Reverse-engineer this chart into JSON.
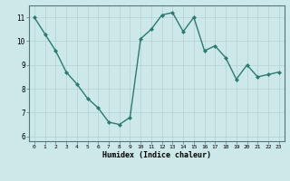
{
  "x": [
    0,
    1,
    2,
    3,
    4,
    5,
    6,
    7,
    8,
    9,
    10,
    11,
    12,
    13,
    14,
    15,
    16,
    17,
    18,
    19,
    20,
    21,
    22,
    23
  ],
  "y": [
    11.0,
    10.3,
    9.6,
    8.7,
    8.2,
    7.6,
    7.2,
    6.6,
    6.5,
    6.8,
    10.1,
    10.5,
    11.1,
    11.2,
    10.4,
    11.0,
    9.6,
    9.8,
    9.3,
    8.4,
    9.0,
    8.5,
    8.6,
    8.7
  ],
  "xlabel": "Humidex (Indice chaleur)",
  "xlim": [
    -0.5,
    23.5
  ],
  "ylim": [
    5.8,
    11.5
  ],
  "yticks": [
    6,
    7,
    8,
    9,
    10,
    11
  ],
  "xticks": [
    0,
    1,
    2,
    3,
    4,
    5,
    6,
    7,
    8,
    9,
    10,
    11,
    12,
    13,
    14,
    15,
    16,
    17,
    18,
    19,
    20,
    21,
    22,
    23
  ],
  "line_color": "#2d7a6e",
  "bg_color": "#cce8e8",
  "grid_color": "#b8d4d4",
  "marker": "D",
  "markersize": 2,
  "linewidth": 1.0
}
